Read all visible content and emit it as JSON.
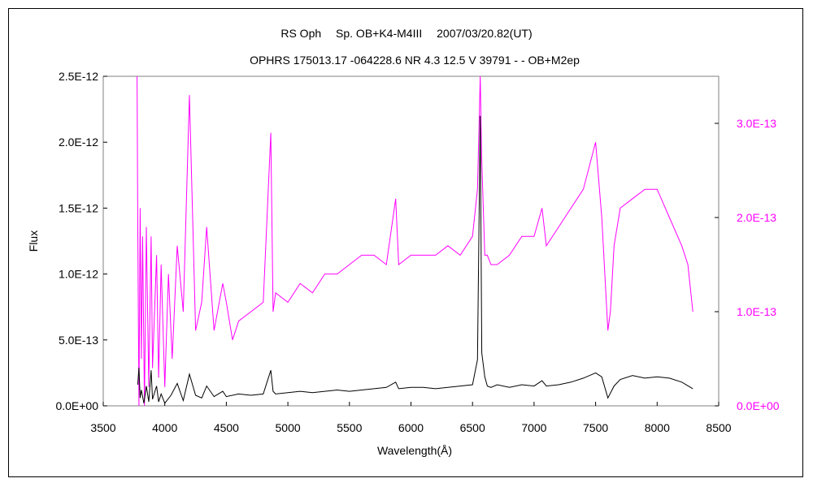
{
  "chart_data": {
    "type": "line",
    "title": "RS Oph　 Sp. OB+K4-M4III　 2007/03/20.82(UT)",
    "subtitle": "OPHRS 175013.17 -064228.6 NR 4.3 12.5 V 39791 - - OB+M2ep",
    "xlabel": "Wavelength(Å)",
    "ylabel": "Flux",
    "xlim": [
      3500,
      8500
    ],
    "ylim_left": [
      0,
      2.5e-12
    ],
    "ylim_right": [
      0,
      3.5e-13
    ],
    "xticks": [
      "3500",
      "4000",
      "4500",
      "5000",
      "5500",
      "6000",
      "6500",
      "7000",
      "7500",
      "8000",
      "8500"
    ],
    "yticks_left": [
      "0.0E+00",
      "5.0E-13",
      "1.0E-12",
      "1.5E-12",
      "2.0E-12",
      "2.5E-12"
    ],
    "yticks_right": [
      "0.0E+00",
      "1.0E-13",
      "2.0E-13",
      "3.0E-13"
    ],
    "grid": false,
    "colors": {
      "left_series": "#000000",
      "right_series": "#ff00ff",
      "right_axis_text": "#ff00ff"
    },
    "series": [
      {
        "axis": "left",
        "x": [
          3780,
          3790,
          3800,
          3810,
          3830,
          3850,
          3870,
          3889,
          3900,
          3933,
          3950,
          3970,
          4000,
          4050,
          4101,
          4150,
          4200,
          4250,
          4300,
          4340,
          4400,
          4471,
          4500,
          4600,
          4700,
          4800,
          4861,
          4880,
          4900,
          5000,
          5100,
          5200,
          5300,
          5400,
          5500,
          5600,
          5700,
          5800,
          5876,
          5900,
          6000,
          6100,
          6200,
          6300,
          6400,
          6500,
          6540,
          6563,
          6575,
          6600,
          6620,
          6650,
          6700,
          6800,
          6900,
          7000,
          7065,
          7100,
          7200,
          7300,
          7400,
          7500,
          7550,
          7600,
          7650,
          7700,
          7800,
          7900,
          8000,
          8100,
          8200,
          8290
        ],
        "y": [
          1.6e-13,
          2.9e-13,
          6e-14,
          1.2e-13,
          2e-14,
          1.5e-13,
          3e-14,
          2.7e-13,
          5e-14,
          1.5e-13,
          3e-14,
          9e-14,
          2e-14,
          8e-14,
          1.7e-13,
          4e-14,
          2.4e-13,
          8e-14,
          6e-14,
          1.5e-13,
          7e-14,
          1.1e-13,
          7e-14,
          9e-14,
          8e-14,
          9e-14,
          2.7e-13,
          1.1e-13,
          9e-14,
          1e-13,
          1.1e-13,
          1e-13,
          1.1e-13,
          1.2e-13,
          1.1e-13,
          1.2e-13,
          1.3e-13,
          1.4e-13,
          1.8e-13,
          1.3e-13,
          1.4e-13,
          1.4e-13,
          1.3e-13,
          1.4e-13,
          1.5e-13,
          1.6e-13,
          3.5e-13,
          2.2e-12,
          4e-13,
          2.2e-13,
          1.5e-13,
          1.4e-13,
          1.6e-13,
          1.4e-13,
          1.6e-13,
          1.5e-13,
          1.9e-13,
          1.5e-13,
          1.6e-13,
          1.8e-13,
          2.1e-13,
          2.5e-13,
          2.2e-13,
          6e-14,
          1.5e-13,
          2e-13,
          2.3e-13,
          2.1e-13,
          2.2e-13,
          2.1e-13,
          1.8e-13,
          1.3e-13
        ]
      },
      {
        "axis": "right",
        "x": [
          3775,
          3780,
          3790,
          3800,
          3810,
          3820,
          3835,
          3850,
          3870,
          3889,
          3900,
          3933,
          3950,
          3970,
          4000,
          4030,
          4060,
          4101,
          4150,
          4200,
          4250,
          4300,
          4340,
          4400,
          4471,
          4500,
          4550,
          4600,
          4700,
          4800,
          4861,
          4880,
          4900,
          5000,
          5100,
          5200,
          5300,
          5400,
          5500,
          5600,
          5700,
          5800,
          5876,
          5900,
          6000,
          6100,
          6200,
          6300,
          6400,
          6500,
          6540,
          6563,
          6575,
          6600,
          6620,
          6650,
          6700,
          6800,
          6900,
          7000,
          7065,
          7100,
          7200,
          7300,
          7400,
          7500,
          7550,
          7600,
          7620,
          7650,
          7700,
          7800,
          7900,
          8000,
          8100,
          8200,
          8250,
          8290
        ],
        "y": [
          3.5e-13,
          2e-13,
          0,
          2.1e-13,
          5e-14,
          1.8e-13,
          0,
          1.9e-13,
          2e-14,
          1.8e-13,
          4e-14,
          1.6e-13,
          3e-14,
          1.5e-13,
          2e-14,
          1.4e-13,
          5e-14,
          1.7e-13,
          1e-13,
          3.3e-13,
          8e-14,
          1.1e-13,
          1.9e-13,
          8e-14,
          1.3e-13,
          1.1e-13,
          7e-14,
          9e-14,
          1e-13,
          1.1e-13,
          2.9e-13,
          1e-13,
          1.2e-13,
          1.1e-13,
          1.3e-13,
          1.2e-13,
          1.4e-13,
          1.4e-13,
          1.5e-13,
          1.6e-13,
          1.6e-13,
          1.5e-13,
          2.2e-13,
          1.5e-13,
          1.6e-13,
          1.6e-13,
          1.6e-13,
          1.7e-13,
          1.6e-13,
          1.8e-13,
          2.3e-13,
          3.5e-13,
          2.6e-13,
          1.6e-13,
          1.6e-13,
          1.5e-13,
          1.5e-13,
          1.6e-13,
          1.8e-13,
          1.8e-13,
          2.1e-13,
          1.7e-13,
          1.9e-13,
          2.1e-13,
          2.3e-13,
          2.8e-13,
          2e-13,
          8e-14,
          1e-13,
          1.7e-13,
          2.1e-13,
          2.2e-13,
          2.3e-13,
          2.3e-13,
          2e-13,
          1.7e-13,
          1.5e-13,
          1e-13
        ]
      }
    ]
  }
}
